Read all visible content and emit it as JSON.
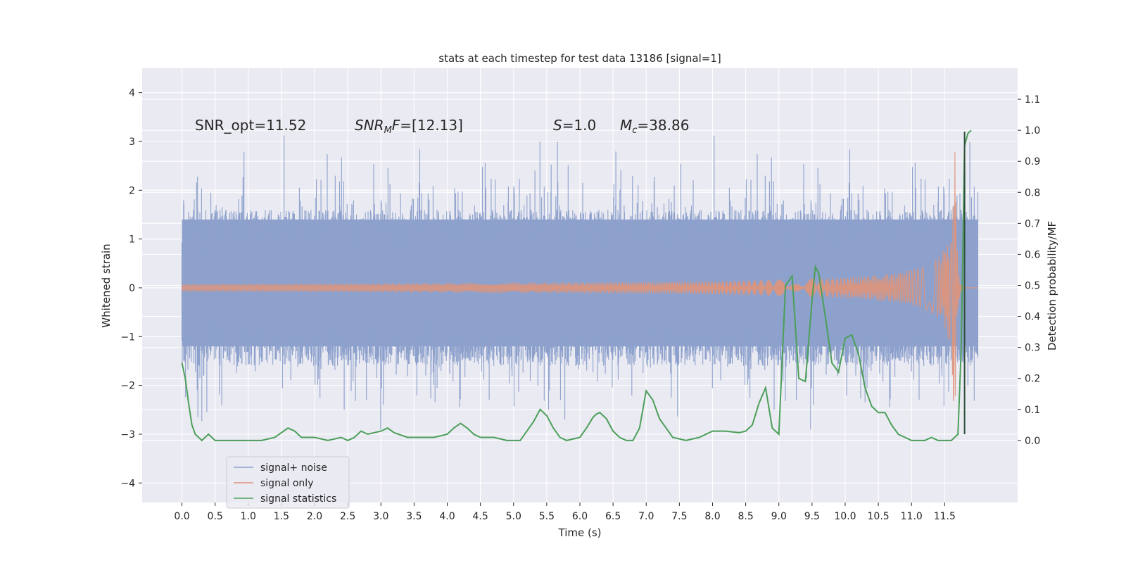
{
  "chart_data": {
    "type": "line",
    "title": "stats at each timestep for test data 13186 [signal=1]",
    "xlabel": "Time (s)",
    "ylabel_left": "Whitened strain",
    "ylabel_right": "Detection probability/MF",
    "xlim": [
      -0.6,
      12.6
    ],
    "ylim_left": [
      -4.4,
      4.5
    ],
    "ylim_right": [
      -0.2,
      1.2
    ],
    "grid": true,
    "legend_position": "lower-left",
    "x_ticks": [
      "0.0",
      "0.5",
      "1.0",
      "1.5",
      "2.0",
      "2.5",
      "3.0",
      "3.5",
      "4.0",
      "4.5",
      "5.0",
      "5.5",
      "6.0",
      "6.5",
      "7.0",
      "7.5",
      "8.0",
      "8.5",
      "9.0",
      "9.5",
      "10.0",
      "10.5",
      "11.0",
      "11.5"
    ],
    "y_ticks_left": [
      "4",
      "3",
      "2",
      "1",
      "0",
      "−1",
      "−2",
      "−3",
      "−4"
    ],
    "y_ticks_right": [
      "1.1",
      "1.0",
      "0.9",
      "0.8",
      "0.7",
      "0.6",
      "0.5",
      "0.4",
      "0.3",
      "0.2",
      "0.1",
      "0.0"
    ],
    "annotations": {
      "snr_opt": "SNR_opt=11.52",
      "snr_mf_main": "SNR",
      "snr_mf_sub": "M",
      "snr_mf_rest": "F=[12.13]",
      "s_var": "S",
      "s_rest": "=1.0",
      "mc_var": "M",
      "mc_sub": "c",
      "mc_rest": "=38.86"
    },
    "series": [
      {
        "name": "signal+ noise",
        "color": "#8da1cc",
        "axis": "left",
        "description_range": [
          -3.9,
          4.1
        ],
        "band_low": -1.2,
        "band_high": 1.4
      },
      {
        "name": "signal only",
        "color": "#e0957a",
        "axis": "left",
        "chirp_start": 7.5,
        "chirp_peak_time": 11.66,
        "chirp_peak": 2.8
      },
      {
        "name": "signal statistics",
        "color": "#4c9f5a",
        "axis": "right",
        "x": [
          0.0,
          0.05,
          0.1,
          0.15,
          0.2,
          0.3,
          0.4,
          0.5,
          0.6,
          0.8,
          1.0,
          1.2,
          1.4,
          1.5,
          1.6,
          1.7,
          1.8,
          2.0,
          2.2,
          2.4,
          2.5,
          2.6,
          2.7,
          2.8,
          3.0,
          3.1,
          3.2,
          3.4,
          3.6,
          3.8,
          4.0,
          4.1,
          4.2,
          4.3,
          4.4,
          4.5,
          4.7,
          4.9,
          5.1,
          5.3,
          5.4,
          5.5,
          5.6,
          5.7,
          5.8,
          6.0,
          6.1,
          6.2,
          6.25,
          6.3,
          6.4,
          6.5,
          6.6,
          6.7,
          6.8,
          6.9,
          7.0,
          7.1,
          7.2,
          7.3,
          7.4,
          7.6,
          7.8,
          8.0,
          8.2,
          8.4,
          8.5,
          8.6,
          8.7,
          8.8,
          8.9,
          9.0,
          9.1,
          9.2,
          9.3,
          9.4,
          9.5,
          9.55,
          9.6,
          9.7,
          9.8,
          9.9,
          10.0,
          10.1,
          10.2,
          10.3,
          10.4,
          10.5,
          10.6,
          10.7,
          10.8,
          11.0,
          11.2,
          11.3,
          11.4,
          11.6,
          11.7,
          11.75,
          11.8,
          11.85,
          11.9
        ],
        "values": [
          0.25,
          0.2,
          0.12,
          0.05,
          0.02,
          0.0,
          0.02,
          0.0,
          0.0,
          0.0,
          0.0,
          0.0,
          0.01,
          0.025,
          0.04,
          0.03,
          0.01,
          0.01,
          0.0,
          0.01,
          0.0,
          0.01,
          0.03,
          0.02,
          0.03,
          0.04,
          0.025,
          0.01,
          0.01,
          0.01,
          0.02,
          0.04,
          0.055,
          0.04,
          0.02,
          0.01,
          0.01,
          0.0,
          0.0,
          0.06,
          0.1,
          0.08,
          0.04,
          0.01,
          0.0,
          0.01,
          0.04,
          0.075,
          0.085,
          0.09,
          0.07,
          0.03,
          0.01,
          0.0,
          0.0,
          0.04,
          0.16,
          0.13,
          0.07,
          0.04,
          0.01,
          0.0,
          0.01,
          0.03,
          0.03,
          0.025,
          0.03,
          0.05,
          0.12,
          0.17,
          0.04,
          0.02,
          0.5,
          0.53,
          0.2,
          0.19,
          0.45,
          0.56,
          0.54,
          0.4,
          0.25,
          0.22,
          0.33,
          0.34,
          0.28,
          0.17,
          0.11,
          0.09,
          0.09,
          0.05,
          0.02,
          0.0,
          0.0,
          0.01,
          0.0,
          0.0,
          0.02,
          0.3,
          0.95,
          0.99,
          1.0
        ]
      }
    ],
    "vline_x": 11.8
  }
}
